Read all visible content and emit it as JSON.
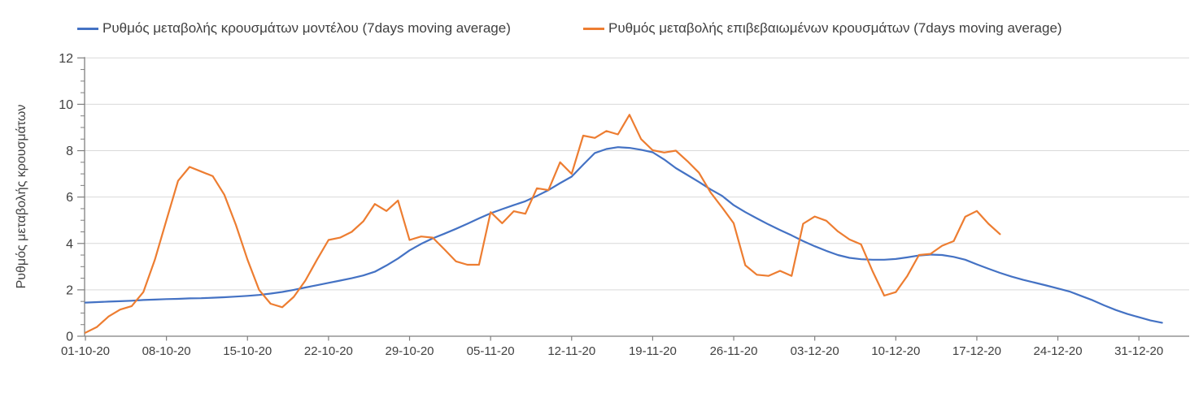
{
  "page": {
    "background": "#ffffff"
  },
  "legend": {
    "position": "top",
    "items": [
      {
        "id": "model",
        "label": "Ρυθμός μεταβολής κρουσμάτων μοντέλου (7days moving average)"
      },
      {
        "id": "confirmed",
        "label": "Ρυθμός μεταβολής επιβεβαιωμένων κρουσμάτων (7days moving average)"
      }
    ]
  },
  "chart_data": {
    "type": "line",
    "title": "",
    "xlabel": "",
    "ylabel": "Ρυθμός μεταβολής κρουσμάτων",
    "ylim": [
      0,
      12
    ],
    "y_major_ticks": [
      0,
      2,
      4,
      6,
      8,
      10,
      12
    ],
    "y_minor_tick_step": 0.5,
    "grid": "horizontal",
    "legend_position": "top",
    "axis_color": "#7f7f7f",
    "gridline_color": "#d9d9d9",
    "text_color": "#404040",
    "x_tick_labels": [
      "01-10-20",
      "08-10-20",
      "15-10-20",
      "22-10-20",
      "29-10-20",
      "05-11-20",
      "12-11-20",
      "19-11-20",
      "26-11-20",
      "03-12-20",
      "10-12-20",
      "17-12-20",
      "24-12-20",
      "31-12-20"
    ],
    "days_per_tick": 7,
    "points_are_daily": true,
    "series": [
      {
        "id": "model",
        "name": "Ρυθμός μεταβολής κρουσμάτων μοντέλου (7days moving average)",
        "color": "#4472C4",
        "start_label": "01-10-20",
        "values": [
          1.45,
          1.47,
          1.49,
          1.51,
          1.53,
          1.56,
          1.58,
          1.6,
          1.61,
          1.63,
          1.64,
          1.66,
          1.68,
          1.71,
          1.74,
          1.78,
          1.84,
          1.91,
          2.0,
          2.1,
          2.2,
          2.3,
          2.4,
          2.5,
          2.62,
          2.78,
          3.05,
          3.35,
          3.7,
          3.98,
          4.22,
          4.42,
          4.63,
          4.85,
          5.08,
          5.3,
          5.48,
          5.65,
          5.82,
          6.05,
          6.3,
          6.6,
          6.88,
          7.4,
          7.9,
          8.07,
          8.15,
          8.12,
          8.04,
          7.93,
          7.62,
          7.25,
          6.95,
          6.65,
          6.33,
          6.05,
          5.65,
          5.35,
          5.08,
          4.82,
          4.58,
          4.35,
          4.1,
          3.88,
          3.68,
          3.5,
          3.38,
          3.32,
          3.3,
          3.3,
          3.33,
          3.4,
          3.48,
          3.52,
          3.5,
          3.42,
          3.3,
          3.1,
          2.91,
          2.73,
          2.57,
          2.43,
          2.31,
          2.19,
          2.06,
          1.93,
          1.74,
          1.55,
          1.33,
          1.13,
          0.96,
          0.82,
          0.68,
          0.58
        ]
      },
      {
        "id": "confirmed",
        "name": "Ρυθμός μεταβολής επιβεβαιωμένων κρουσμάτων (7days moving average)",
        "color": "#ED7D31",
        "start_label": "01-10-20",
        "values": [
          0.15,
          0.4,
          0.85,
          1.15,
          1.3,
          1.9,
          3.3,
          5.0,
          6.7,
          7.3,
          7.1,
          6.9,
          6.1,
          4.8,
          3.3,
          2.0,
          1.4,
          1.25,
          1.7,
          2.4,
          3.3,
          4.15,
          4.25,
          4.5,
          4.95,
          5.7,
          5.4,
          5.85,
          4.15,
          4.3,
          4.25,
          3.75,
          3.23,
          3.08,
          3.08,
          5.35,
          4.87,
          5.39,
          5.28,
          6.38,
          6.3,
          7.5,
          7.0,
          8.65,
          8.55,
          8.85,
          8.7,
          9.55,
          8.5,
          8.02,
          7.92,
          8.0,
          7.55,
          7.05,
          6.2,
          5.55,
          4.87,
          3.06,
          2.65,
          2.6,
          2.82,
          2.6,
          4.85,
          5.16,
          4.98,
          4.52,
          4.17,
          3.96,
          2.8,
          1.75,
          1.9,
          2.6,
          3.5,
          3.55,
          3.9,
          4.1,
          5.15,
          5.4,
          4.85,
          4.4
        ]
      }
    ]
  }
}
